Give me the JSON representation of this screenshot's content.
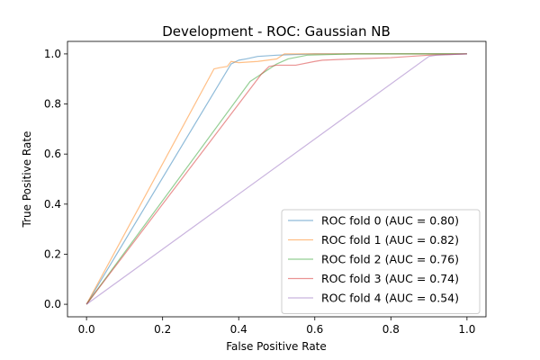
{
  "chart_data": {
    "type": "line",
    "title": "Development - ROC: Gaussian NB",
    "xlabel": "False Positive Rate",
    "ylabel": "True Positive Rate",
    "xlim": [
      -0.05,
      1.05
    ],
    "ylim": [
      -0.05,
      1.05
    ],
    "xticks": [
      0.0,
      0.2,
      0.4,
      0.6,
      0.8,
      1.0
    ],
    "yticks": [
      0.0,
      0.2,
      0.4,
      0.6,
      0.8,
      1.0
    ],
    "xtick_labels": [
      "0.0",
      "0.2",
      "0.4",
      "0.6",
      "0.8",
      "1.0"
    ],
    "ytick_labels": [
      "0.0",
      "0.2",
      "0.4",
      "0.6",
      "0.8",
      "1.0"
    ],
    "grid": false,
    "legend_position": "lower-right",
    "series": [
      {
        "name": "ROC fold 0 (AUC = 0.80)",
        "color": "#1f77b4",
        "x": [
          0.0,
          0.38,
          0.4,
          0.42,
          0.45,
          0.5,
          0.6,
          0.8,
          1.0
        ],
        "y": [
          0.0,
          0.96,
          0.975,
          0.98,
          0.99,
          0.995,
          1.0,
          1.0,
          1.0
        ]
      },
      {
        "name": "ROC fold 1 (AUC = 0.82)",
        "color": "#ff7f0e",
        "x": [
          0.0,
          0.335,
          0.35,
          0.37,
          0.38,
          0.4,
          0.45,
          0.5,
          0.52,
          0.6,
          0.8,
          1.0
        ],
        "y": [
          0.0,
          0.94,
          0.945,
          0.95,
          0.97,
          0.965,
          0.97,
          0.98,
          1.0,
          1.0,
          1.0,
          1.0
        ]
      },
      {
        "name": "ROC fold 2 (AUC = 0.76)",
        "color": "#2ca02c",
        "x": [
          0.0,
          0.43,
          0.45,
          0.47,
          0.5,
          0.53,
          0.58,
          0.7,
          0.9,
          1.0
        ],
        "y": [
          0.0,
          0.89,
          0.91,
          0.93,
          0.96,
          0.98,
          0.995,
          1.0,
          1.0,
          1.0
        ]
      },
      {
        "name": "ROC fold 3 (AUC = 0.74)",
        "color": "#d62728",
        "x": [
          0.0,
          0.46,
          0.48,
          0.5,
          0.55,
          0.6,
          0.62,
          0.7,
          0.8,
          0.9,
          1.0
        ],
        "y": [
          0.0,
          0.92,
          0.95,
          0.955,
          0.955,
          0.97,
          0.975,
          0.98,
          0.985,
          0.995,
          1.0
        ]
      },
      {
        "name": "ROC fold 4 (AUC = 0.54)",
        "color": "#9467bd",
        "x": [
          0.0,
          0.9,
          0.92,
          1.0
        ],
        "y": [
          0.0,
          0.99,
          0.995,
          1.0
        ]
      }
    ]
  }
}
